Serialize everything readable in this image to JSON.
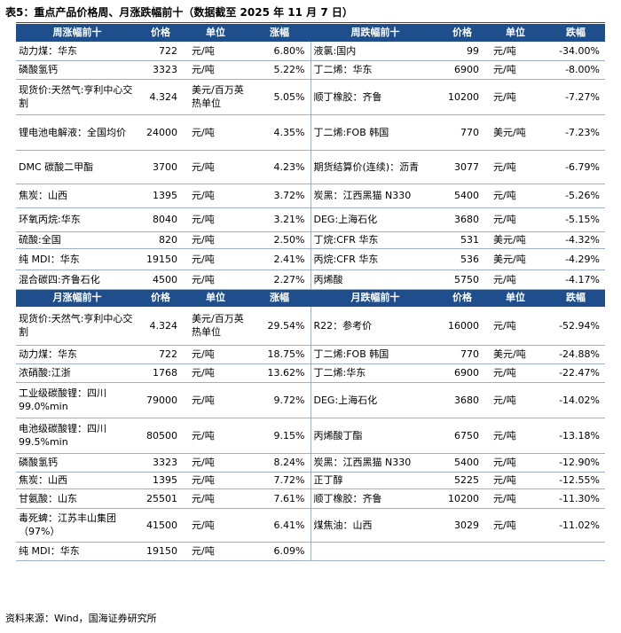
{
  "title": "表5：重点产品价格周、月涨跌幅前十（数据截至 2025 年 11 月 7 日）",
  "weekly": {
    "headers": [
      "周涨幅前十",
      "价格",
      "单位",
      "涨幅",
      "周跌幅前十",
      "价格",
      "单位",
      "跌幅"
    ],
    "rows": [
      [
        "动力煤：华东",
        "722",
        "元/吨",
        "6.80%",
        "液氯:国内",
        "99",
        "元/吨",
        "-34.00%"
      ],
      [
        "磷酸氢钙",
        "3323",
        "元/吨",
        "5.22%",
        "丁二烯：华东",
        "6900",
        "元/吨",
        "-8.00%"
      ],
      [
        "现货价:天然气:亨利中心交割",
        "4.324",
        "美元/百万英热单位",
        "5.05%",
        "顺丁橡胶：齐鲁",
        "10200",
        "元/吨",
        "-7.27%"
      ],
      [
        "锂电池电解液：全国均价",
        "24000",
        "元/吨",
        "4.35%",
        "丁二烯:FOB 韩国",
        "770",
        "美元/吨",
        "-7.23%"
      ],
      [
        "DMC 碳酸二甲酯",
        "3700",
        "元/吨",
        "4.23%",
        "期货结算价(连续)：沥青",
        "3077",
        "元/吨",
        "-6.79%"
      ],
      [
        "焦炭：山西",
        "1395",
        "元/吨",
        "3.72%",
        "炭黑：江西黑猫 N330",
        "5400",
        "元/吨",
        "-5.26%"
      ],
      [
        "环氧丙烷:华东",
        "8040",
        "元/吨",
        "3.21%",
        "DEG:上海石化",
        "3680",
        "元/吨",
        "-5.15%"
      ],
      [
        "硫酸:全国",
        "820",
        "元/吨",
        "2.50%",
        "丁烷:CFR 华东",
        "531",
        "美元/吨",
        "-4.32%"
      ],
      [
        "纯 MDI：华东",
        "19150",
        "元/吨",
        "2.41%",
        "丙烷:CFR 华东",
        "536",
        "美元/吨",
        "-4.29%"
      ],
      [
        "混合碳四:齐鲁石化",
        "4500",
        "元/吨",
        "2.27%",
        "丙烯酸",
        "5750",
        "元/吨",
        "-4.17%"
      ]
    ]
  },
  "monthly": {
    "headers": [
      "月涨幅前十",
      "价格",
      "单位",
      "涨幅",
      "月跌幅前十",
      "价格",
      "单位",
      "跌幅"
    ],
    "rows": [
      [
        "现货价:天然气:亨利中心交割",
        "4.324",
        "美元/百万英热单位",
        "29.54%",
        "R22：参考价",
        "16000",
        "元/吨",
        "-52.94%"
      ],
      [
        "动力煤：华东",
        "722",
        "元/吨",
        "18.75%",
        "丁二烯:FOB 韩国",
        "770",
        "美元/吨",
        "-24.88%"
      ],
      [
        "浓硝酸:江浙",
        "1768",
        "元/吨",
        "13.62%",
        "丁二烯:华东",
        "6900",
        "元/吨",
        "-22.47%"
      ],
      [
        "工业级碳酸锂：四川 99.0%min",
        "79000",
        "元/吨",
        "9.72%",
        "DEG:上海石化",
        "3680",
        "元/吨",
        "-14.02%"
      ],
      [
        "电池级碳酸锂：四川 99.5%min",
        "80500",
        "元/吨",
        "9.15%",
        "丙烯酸丁酯",
        "6750",
        "元/吨",
        "-13.18%"
      ],
      [
        "磷酸氢钙",
        "3323",
        "元/吨",
        "8.24%",
        "炭黑：江西黑猫 N330",
        "5400",
        "元/吨",
        "-12.90%"
      ],
      [
        "焦炭：山西",
        "1395",
        "元/吨",
        "7.72%",
        "正丁醇",
        "5225",
        "元/吨",
        "-12.55%"
      ],
      [
        "甘氨酸：山东",
        "25501",
        "元/吨",
        "7.61%",
        "顺丁橡胶：齐鲁",
        "10200",
        "元/吨",
        "-11.30%"
      ],
      [
        "毒死蜱：江苏丰山集团（97%）",
        "41500",
        "元/吨",
        "6.41%",
        "煤焦油：山西",
        "3029",
        "元/吨",
        "-11.02%"
      ],
      [
        "纯 MDI：华东",
        "19150",
        "元/吨",
        "6.09%",
        "",
        "",
        "",
        ""
      ]
    ]
  },
  "source": "资料来源：Wind，国海证券研究所",
  "colors": {
    "header_bg": "#1f4e8c",
    "header_text": "#ffffff",
    "rule": "#9eb0c8"
  }
}
